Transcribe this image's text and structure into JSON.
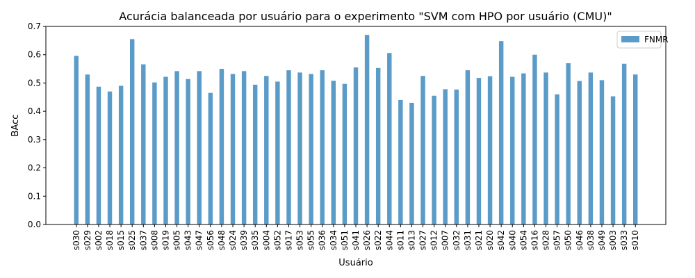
{
  "chart_data": {
    "type": "bar",
    "title": "Acurácia balanceada por usuário para o experimento \"SVM com HPO por usuário (CMU)\"",
    "xlabel": "Usuário",
    "ylabel": "BAcc",
    "ylim": [
      0,
      0.7
    ],
    "yticks": [
      "0.0",
      "0.1",
      "0.2",
      "0.3",
      "0.4",
      "0.5",
      "0.6",
      "0.7"
    ],
    "grid": false,
    "legend": {
      "position": "top-right"
    },
    "categories": [
      "s030",
      "s029",
      "s002",
      "s018",
      "s015",
      "s025",
      "s037",
      "s008",
      "s019",
      "s005",
      "s043",
      "s047",
      "s056",
      "s048",
      "s024",
      "s039",
      "s035",
      "s004",
      "s052",
      "s017",
      "s053",
      "s055",
      "s036",
      "s034",
      "s051",
      "s041",
      "s026",
      "s022",
      "s044",
      "s011",
      "s013",
      "s027",
      "s012",
      "s007",
      "s032",
      "s031",
      "s021",
      "s020",
      "s042",
      "s040",
      "s054",
      "s016",
      "s028",
      "s057",
      "s050",
      "s046",
      "s038",
      "s049",
      "s003",
      "s033",
      "s010"
    ],
    "series": [
      {
        "name": "FNMR",
        "color": "#5b9bc8",
        "values": [
          0.596,
          0.53,
          0.487,
          0.47,
          0.49,
          0.655,
          0.566,
          0.502,
          0.522,
          0.542,
          0.514,
          0.542,
          0.465,
          0.55,
          0.532,
          0.542,
          0.494,
          0.525,
          0.505,
          0.545,
          0.537,
          0.532,
          0.545,
          0.508,
          0.497,
          0.555,
          0.67,
          0.553,
          0.606,
          0.44,
          0.43,
          0.525,
          0.455,
          0.478,
          0.477,
          0.545,
          0.518,
          0.524,
          0.648,
          0.522,
          0.534,
          0.6,
          0.537,
          0.46,
          0.57,
          0.507,
          0.537,
          0.51,
          0.453,
          0.568,
          0.53
        ]
      }
    ]
  }
}
